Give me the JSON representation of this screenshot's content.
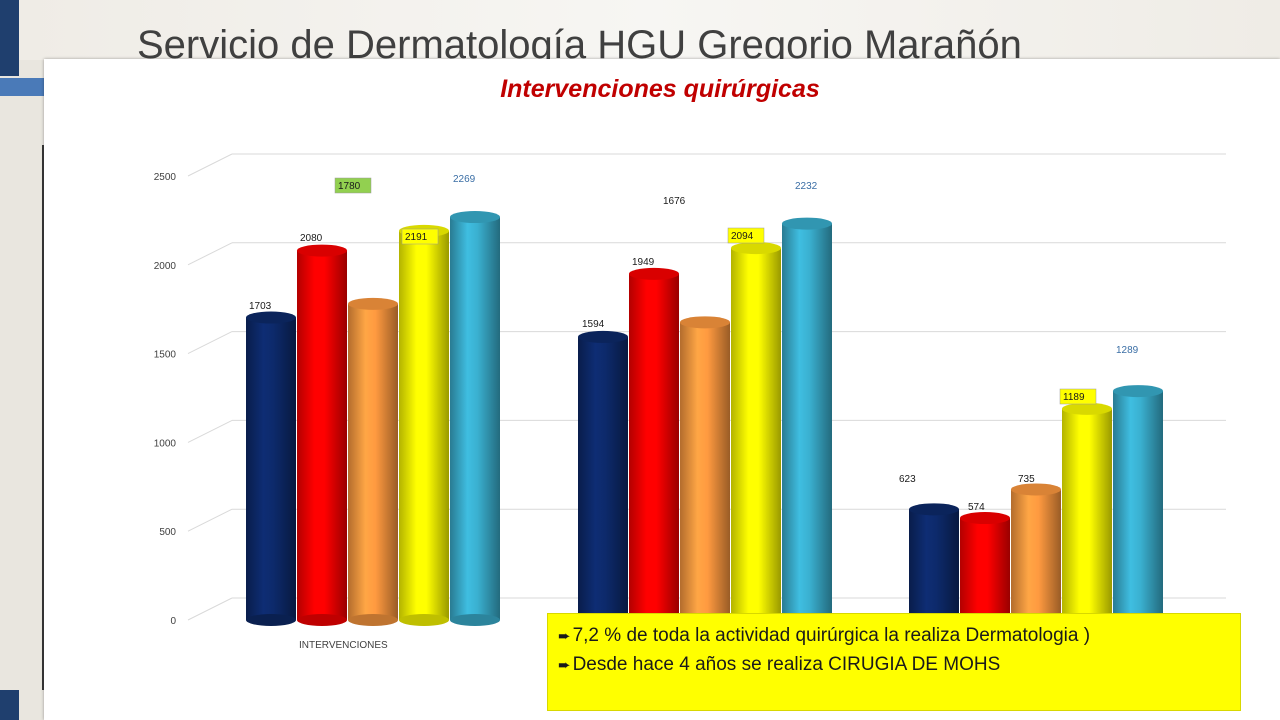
{
  "slide": {
    "title": "Servicio de Dermatología HGU Gregorio Marañón"
  },
  "notes": [
    {
      "bullet": "➨",
      "text": "7,2 % de toda la actividad quirúrgica la realiza Dermatologia )"
    },
    {
      "bullet": "➨",
      "text": "Desde hace 4 años se realiza CIRUGIA DE MOHS"
    }
  ],
  "chart_data": {
    "type": "bar",
    "title": "Intervenciones quirúrgicas",
    "categories": [
      "INTERVENCIONES",
      "",
      ""
    ],
    "ylim": [
      0,
      2500
    ],
    "yticks": [
      0,
      500,
      1000,
      1500,
      2000,
      2500
    ],
    "grid": true,
    "series": [
      {
        "values": [
          1703,
          1594,
          623
        ],
        "color": "#0d2a6b"
      },
      {
        "values": [
          2080,
          1949,
          574
        ],
        "color": "#ff0000"
      },
      {
        "values": [
          1780,
          1676,
          735
        ],
        "color": "#ff9a40"
      },
      {
        "values": [
          2191,
          2094,
          1189
        ],
        "color": "#ffff00"
      },
      {
        "values": [
          2269,
          2232,
          1289
        ],
        "color": "#3ab0d0"
      }
    ]
  }
}
